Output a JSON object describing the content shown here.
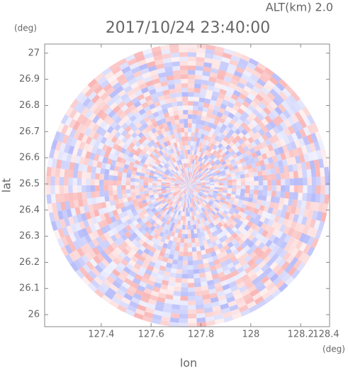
{
  "chart_data": {
    "type": "radar-ppi",
    "title": "2017/10/24 23:40:00",
    "altitude_label": "ALT(km)  2.0",
    "y_unit": "(deg)",
    "x_unit": "(deg)",
    "xlabel": "lon",
    "ylabel": "lat",
    "xlim": [
      127.173,
      128.316
    ],
    "ylim": [
      25.954,
      27.035
    ],
    "xticks": [
      127.4,
      127.6,
      127.8,
      128.0,
      128.2,
      128.4
    ],
    "yticks": [
      26.0,
      26.1,
      26.2,
      26.3,
      26.4,
      26.5,
      26.6,
      26.7,
      26.8,
      26.9,
      27.0
    ]
  }
}
